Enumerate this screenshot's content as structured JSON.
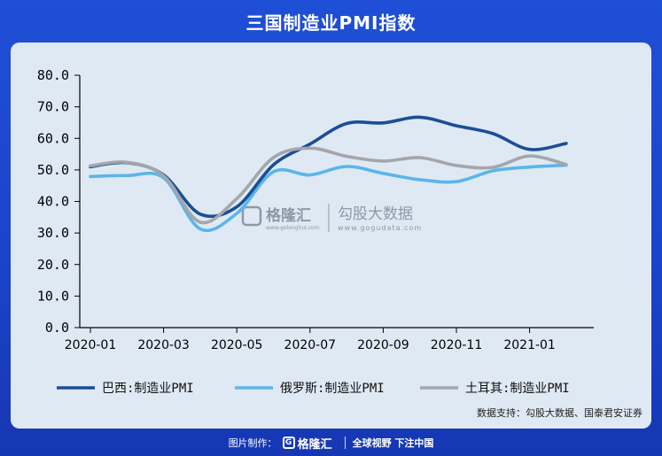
{
  "title": "三国制造业PMI指数",
  "source": "数据支持：勾股大数据、国泰君安证券",
  "watermark": {
    "brand": "格隆汇",
    "brand_url": "www.gelonghui.com",
    "data_brand": "勾股大数据",
    "data_url": "www.gogudata.com"
  },
  "footer": {
    "prefix": "图片制作：",
    "logo_mark": "G",
    "logo_name": "格隆汇",
    "slogan": "全球视野 下注中国"
  },
  "colors": {
    "brazil": "#1a4e96",
    "russia": "#5ab6ea",
    "turkey": "#a4a6aa"
  },
  "chart_data": {
    "type": "line",
    "x": [
      "2020-01",
      "2020-02",
      "2020-03",
      "2020-04",
      "2020-05",
      "2020-06",
      "2020-07",
      "2020-08",
      "2020-09",
      "2020-10",
      "2020-11",
      "2020-12",
      "2021-01",
      "2021-02"
    ],
    "x_ticks": [
      "2020-01",
      "2020-03",
      "2020-05",
      "2020-07",
      "2020-09",
      "2020-11",
      "2021-01"
    ],
    "y_ticks": [
      "0.0",
      "10.0",
      "20.0",
      "30.0",
      "40.0",
      "50.0",
      "60.0",
      "70.0",
      "80.0"
    ],
    "ylim": [
      0,
      80
    ],
    "series": [
      {
        "name": "巴西:制造业PMI",
        "color": "#1a4e96",
        "values": [
          51.0,
          52.3,
          48.4,
          36.0,
          38.3,
          51.6,
          58.2,
          64.7,
          64.9,
          66.7,
          64.0,
          61.5,
          56.5,
          58.4
        ]
      },
      {
        "name": "俄罗斯:制造业PMI",
        "color": "#5ab6ea",
        "values": [
          47.9,
          48.2,
          47.5,
          31.3,
          36.2,
          49.4,
          48.4,
          51.1,
          48.9,
          46.9,
          46.3,
          49.7,
          50.9,
          51.5
        ]
      },
      {
        "name": "土耳其:制造业PMI",
        "color": "#a4a6aa",
        "values": [
          51.3,
          52.4,
          48.1,
          33.4,
          40.9,
          53.9,
          56.9,
          54.3,
          52.8,
          53.9,
          51.4,
          50.8,
          54.4,
          51.7
        ]
      }
    ],
    "legend_position": "bottom",
    "grid": false
  }
}
